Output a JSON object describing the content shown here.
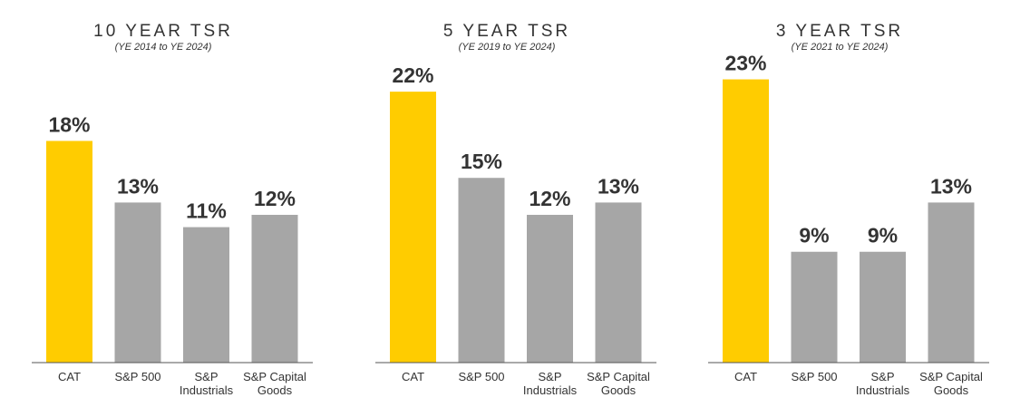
{
  "colors": {
    "highlight": "#FFCC00",
    "bar": "#A6A6A6",
    "axis": "#555555",
    "text": "#333333"
  },
  "chart_data": [
    {
      "type": "bar",
      "title": "10 YEAR TSR",
      "subtitle": "(YE 2014 to YE 2024)",
      "categories": [
        "CAT",
        "S&P 500",
        "S&P Industrials",
        "S&P Capital Goods"
      ],
      "category_lines": [
        [
          "CAT"
        ],
        [
          "S&P 500"
        ],
        [
          "S&P",
          "Industrials"
        ],
        [
          "S&P Capital",
          "Goods"
        ]
      ],
      "values": [
        18,
        13,
        11,
        12
      ],
      "value_labels": [
        "18%",
        "13%",
        "11%",
        "12%"
      ],
      "highlight_index": 0,
      "ylim": [
        0,
        26.5
      ],
      "xlabel": "",
      "ylabel": ""
    },
    {
      "type": "bar",
      "title": "5 YEAR TSR",
      "subtitle": "(YE 2019 to YE 2024)",
      "categories": [
        "CAT",
        "S&P 500",
        "S&P Industrials",
        "S&P Capital Goods"
      ],
      "category_lines": [
        [
          "CAT"
        ],
        [
          "S&P 500"
        ],
        [
          "S&P",
          "Industrials"
        ],
        [
          "S&P Capital",
          "Goods"
        ]
      ],
      "values": [
        22,
        15,
        12,
        13
      ],
      "value_labels": [
        "22%",
        "15%",
        "12%",
        "13%"
      ],
      "highlight_index": 0,
      "ylim": [
        0,
        26.5
      ],
      "xlabel": "",
      "ylabel": ""
    },
    {
      "type": "bar",
      "title": "3 YEAR TSR",
      "subtitle": "(YE 2021 to YE 2024)",
      "categories": [
        "CAT",
        "S&P 500",
        "S&P Industrials",
        "S&P Capital Goods"
      ],
      "category_lines": [
        [
          "CAT"
        ],
        [
          "S&P 500"
        ],
        [
          "S&P",
          "Industrials"
        ],
        [
          "S&P Capital",
          "Goods"
        ]
      ],
      "values": [
        23,
        9,
        9,
        13
      ],
      "value_labels": [
        "23%",
        "9%",
        "9%",
        "13%"
      ],
      "highlight_index": 0,
      "ylim": [
        0,
        26.5
      ],
      "xlabel": "",
      "ylabel": ""
    }
  ]
}
